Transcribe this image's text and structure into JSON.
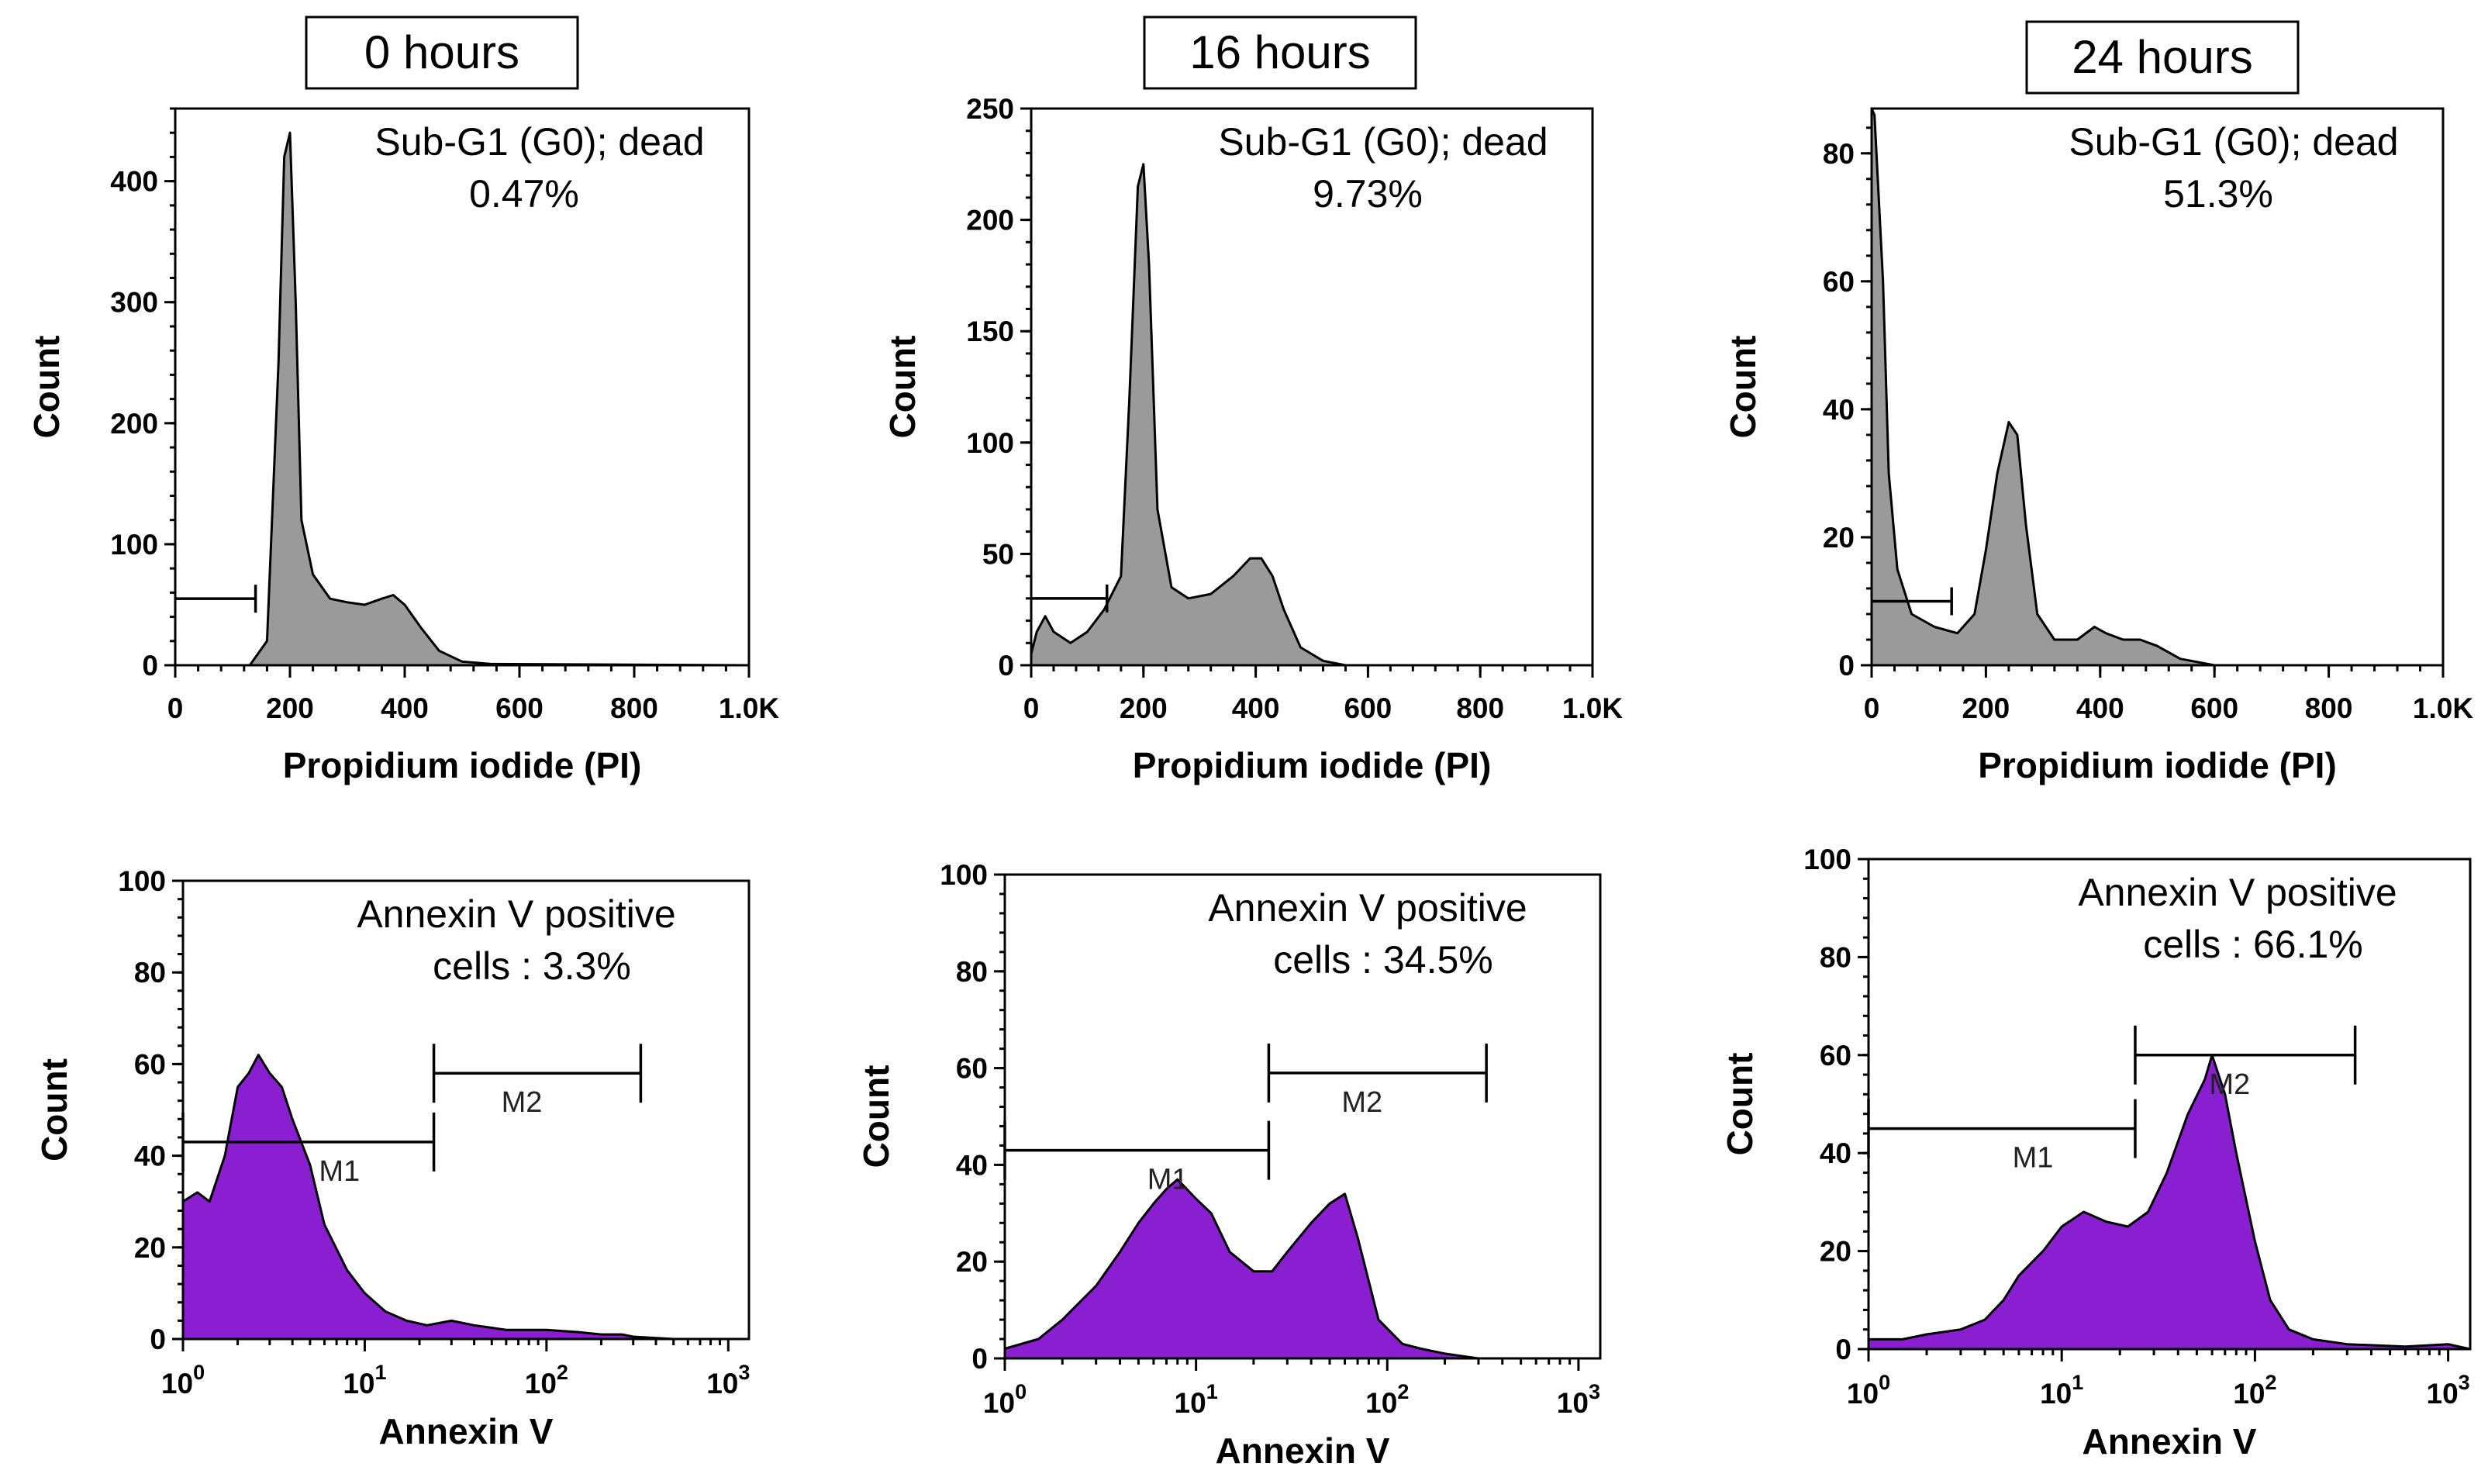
{
  "chart_data": [
    {
      "panel": "top-left",
      "type": "area",
      "time_label": "0 hours",
      "title": "Sub-G1 (G0); dead",
      "stat": "0.47%",
      "xlabel": "Propidium iodide (PI)",
      "ylabel": "Count",
      "xlim": [
        0,
        1000
      ],
      "ylim": [
        0,
        460
      ],
      "xticks": [
        0,
        200,
        400,
        600,
        800,
        1000
      ],
      "xtick_labels": [
        "0",
        "200",
        "400",
        "600",
        "800",
        "1.0K"
      ],
      "yticks": [
        0,
        100,
        200,
        300,
        400
      ],
      "ytick_labels": [
        "0",
        "100",
        "200",
        "300",
        "400"
      ],
      "color": "#9a9a9a",
      "gate": {
        "x0": 0,
        "x1": 140,
        "y": 55
      },
      "x": [
        130,
        160,
        180,
        190,
        200,
        210,
        220,
        240,
        270,
        300,
        330,
        360,
        380,
        400,
        430,
        460,
        500,
        550,
        1000
      ],
      "values": [
        0,
        20,
        250,
        420,
        440,
        300,
        120,
        75,
        55,
        52,
        50,
        55,
        58,
        50,
        30,
        12,
        3,
        1,
        0
      ]
    },
    {
      "panel": "top-middle",
      "type": "area",
      "time_label": "16 hours",
      "title": "Sub-G1 (G0); dead",
      "stat": "9.73%",
      "xlabel": "Propidium iodide (PI)",
      "ylabel": "Count",
      "xlim": [
        0,
        1000
      ],
      "ylim": [
        0,
        250
      ],
      "xticks": [
        0,
        200,
        400,
        600,
        800,
        1000
      ],
      "xtick_labels": [
        "0",
        "200",
        "400",
        "600",
        "800",
        "1.0K"
      ],
      "yticks": [
        0,
        50,
        100,
        150,
        200,
        250
      ],
      "ytick_labels": [
        "0",
        "50",
        "100",
        "150",
        "200",
        "250"
      ],
      "color": "#9a9a9a",
      "gate": {
        "x0": 0,
        "x1": 135,
        "y": 30
      },
      "x": [
        0,
        10,
        25,
        40,
        70,
        100,
        130,
        160,
        175,
        190,
        200,
        210,
        225,
        250,
        280,
        320,
        360,
        390,
        410,
        430,
        450,
        480,
        520,
        560,
        1000
      ],
      "values": [
        5,
        15,
        22,
        15,
        10,
        15,
        25,
        40,
        120,
        215,
        225,
        180,
        70,
        35,
        30,
        32,
        40,
        48,
        48,
        40,
        25,
        8,
        2,
        0,
        0
      ]
    },
    {
      "panel": "top-right",
      "type": "area",
      "time_label": "24 hours",
      "title": "Sub-G1 (G0); dead",
      "stat": "51.3%",
      "xlabel": "Propidium iodide (PI)",
      "ylabel": "Count",
      "xlim": [
        0,
        1000
      ],
      "ylim": [
        0,
        87
      ],
      "xticks": [
        0,
        200,
        400,
        600,
        800,
        1000
      ],
      "xtick_labels": [
        "0",
        "200",
        "400",
        "600",
        "800",
        "1.0K"
      ],
      "yticks": [
        0,
        20,
        40,
        60,
        80
      ],
      "ytick_labels": [
        "0",
        "20",
        "40",
        "60",
        "80"
      ],
      "color": "#9a9a9a",
      "gate": {
        "x0": 0,
        "x1": 140,
        "y": 10
      },
      "x": [
        0,
        5,
        20,
        30,
        45,
        70,
        110,
        150,
        180,
        200,
        220,
        240,
        255,
        270,
        290,
        320,
        360,
        390,
        410,
        440,
        470,
        500,
        540,
        600,
        1000
      ],
      "values": [
        87,
        86,
        60,
        30,
        15,
        8,
        6,
        5,
        8,
        18,
        30,
        38,
        36,
        22,
        8,
        4,
        4,
        6,
        5,
        4,
        4,
        3,
        1,
        0,
        0
      ]
    },
    {
      "panel": "bottom-left",
      "type": "area",
      "title": "Annexin V positive",
      "stat": "cells : 3.3%",
      "xlabel": "Annexin V",
      "ylabel": "Count",
      "xscale": "log",
      "xlim": [
        1,
        1300
      ],
      "ylim": [
        0,
        100
      ],
      "xticks": [
        1,
        10,
        100,
        1000
      ],
      "xtick_base": [
        "10",
        "10",
        "10",
        "10"
      ],
      "xtick_exp": [
        "0",
        "1",
        "2",
        "3"
      ],
      "yticks": [
        0,
        20,
        40,
        60,
        80,
        100
      ],
      "ytick_labels": [
        "0",
        "20",
        "40",
        "60",
        "80",
        "100"
      ],
      "color": "#8a1fd2",
      "gates": [
        {
          "name": "M1",
          "x0": 1,
          "x1": 24,
          "y": 43
        },
        {
          "name": "M2",
          "x0": 24,
          "x1": 330,
          "y": 58
        }
      ],
      "x": [
        1,
        1.2,
        1.4,
        1.7,
        2,
        2.3,
        2.6,
        3,
        3.5,
        4,
        5,
        6,
        8,
        10,
        13,
        17,
        22,
        30,
        40,
        60,
        100,
        150,
        200,
        260,
        300,
        500,
        1300
      ],
      "values": [
        30,
        32,
        30,
        40,
        55,
        58,
        62,
        58,
        55,
        48,
        38,
        25,
        15,
        10,
        6,
        4,
        3,
        4,
        3,
        2,
        2,
        1.5,
        1,
        1,
        0.5,
        0,
        0
      ]
    },
    {
      "panel": "bottom-middle",
      "type": "area",
      "title": "Annexin V positive",
      "stat": "cells : 34.5%",
      "xlabel": "Annexin V",
      "ylabel": "Count",
      "xscale": "log",
      "xlim": [
        1,
        1300
      ],
      "ylim": [
        0,
        100
      ],
      "xticks": [
        1,
        10,
        100,
        1000
      ],
      "xtick_base": [
        "10",
        "10",
        "10",
        "10"
      ],
      "xtick_exp": [
        "0",
        "1",
        "2",
        "3"
      ],
      "yticks": [
        0,
        20,
        40,
        60,
        80,
        100
      ],
      "ytick_labels": [
        "0",
        "20",
        "40",
        "60",
        "80",
        "100"
      ],
      "color": "#8a1fd2",
      "gates": [
        {
          "name": "M1",
          "x0": 1,
          "x1": 24,
          "y": 43
        },
        {
          "name": "M2",
          "x0": 24,
          "x1": 330,
          "y": 59
        }
      ],
      "x": [
        1,
        1.5,
        2,
        3,
        4,
        5,
        6,
        7,
        8,
        10,
        12,
        15,
        20,
        25,
        30,
        40,
        50,
        60,
        70,
        90,
        120,
        150,
        200,
        300,
        1300
      ],
      "values": [
        2,
        4,
        8,
        15,
        22,
        28,
        32,
        35,
        37,
        33,
        30,
        22,
        18,
        18,
        22,
        28,
        32,
        34,
        25,
        8,
        3,
        2,
        1,
        0,
        0
      ]
    },
    {
      "panel": "bottom-right",
      "type": "area",
      "title": "Annexin V positive",
      "stat": "cells : 66.1%",
      "xlabel": "Annexin V",
      "ylabel": "Count",
      "xscale": "log",
      "xlim": [
        1,
        1300
      ],
      "ylim": [
        0,
        100
      ],
      "xticks": [
        1,
        10,
        100,
        1000
      ],
      "xtick_base": [
        "10",
        "10",
        "10",
        "10"
      ],
      "xtick_exp": [
        "0",
        "1",
        "2",
        "3"
      ],
      "yticks": [
        0,
        20,
        40,
        60,
        80,
        100
      ],
      "ytick_labels": [
        "0",
        "20",
        "40",
        "60",
        "80",
        "100"
      ],
      "color": "#8a1fd2",
      "gates": [
        {
          "name": "M1",
          "x0": 1,
          "x1": 24,
          "y": 45
        },
        {
          "name": "M2",
          "x0": 24,
          "x1": 330,
          "y": 60
        }
      ],
      "x": [
        1,
        1.5,
        2,
        3,
        4,
        5,
        6,
        8,
        10,
        13,
        17,
        22,
        28,
        35,
        45,
        55,
        60,
        70,
        80,
        100,
        120,
        150,
        200,
        300,
        600,
        1000,
        1300
      ],
      "values": [
        2,
        2,
        3,
        4,
        6,
        10,
        15,
        20,
        25,
        28,
        26,
        25,
        28,
        36,
        48,
        55,
        60,
        52,
        40,
        22,
        10,
        4,
        2,
        1,
        0.5,
        1,
        0
      ]
    }
  ]
}
